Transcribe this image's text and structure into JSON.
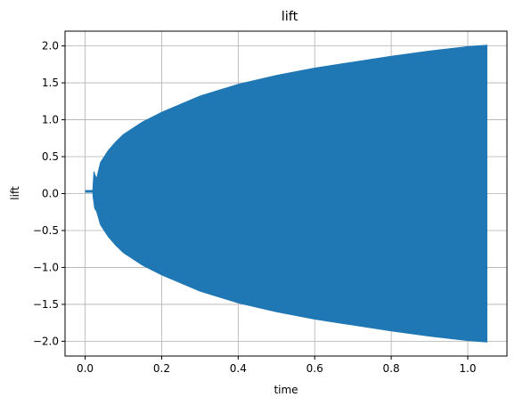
{
  "chart_data": {
    "type": "area",
    "title": "lift",
    "xlabel": "time",
    "ylabel": "lift",
    "xlim": [
      -0.0525,
      1.1025
    ],
    "ylim": [
      -2.2,
      2.2
    ],
    "grid": true,
    "series_color": "#1f77b4",
    "xticks": [
      0.0,
      0.2,
      0.4,
      0.6,
      0.8,
      1.0
    ],
    "xtick_labels": [
      "0.0",
      "0.2",
      "0.4",
      "0.6",
      "0.8",
      "1.0"
    ],
    "yticks": [
      -2.0,
      -1.5,
      -1.0,
      -0.5,
      0.0,
      0.5,
      1.0,
      1.5,
      2.0
    ],
    "ytick_labels": [
      "−2.0",
      "−1.5",
      "−1.0",
      "−0.5",
      "0.0",
      "0.5",
      "1.0",
      "1.5",
      "2.0"
    ],
    "series": [
      {
        "time": [
          0.0,
          0.02,
          0.021,
          0.023,
          0.025,
          0.03,
          0.04,
          0.06,
          0.08,
          0.1,
          0.15,
          0.2,
          0.3,
          0.4,
          0.5,
          0.6,
          0.7,
          0.8,
          0.9,
          1.0,
          1.05
        ],
        "lift_max": [
          0.03,
          0.03,
          0.12,
          0.3,
          0.26,
          0.2,
          0.42,
          0.58,
          0.7,
          0.8,
          0.97,
          1.1,
          1.32,
          1.48,
          1.6,
          1.7,
          1.78,
          1.86,
          1.93,
          1.99,
          2.01
        ],
        "lift_min": [
          0.03,
          0.03,
          -0.05,
          -0.12,
          -0.2,
          -0.24,
          -0.42,
          -0.58,
          -0.7,
          -0.8,
          -0.97,
          -1.1,
          -1.32,
          -1.48,
          -1.6,
          -1.7,
          -1.78,
          -1.86,
          -1.93,
          -1.99,
          -2.01
        ]
      }
    ]
  }
}
